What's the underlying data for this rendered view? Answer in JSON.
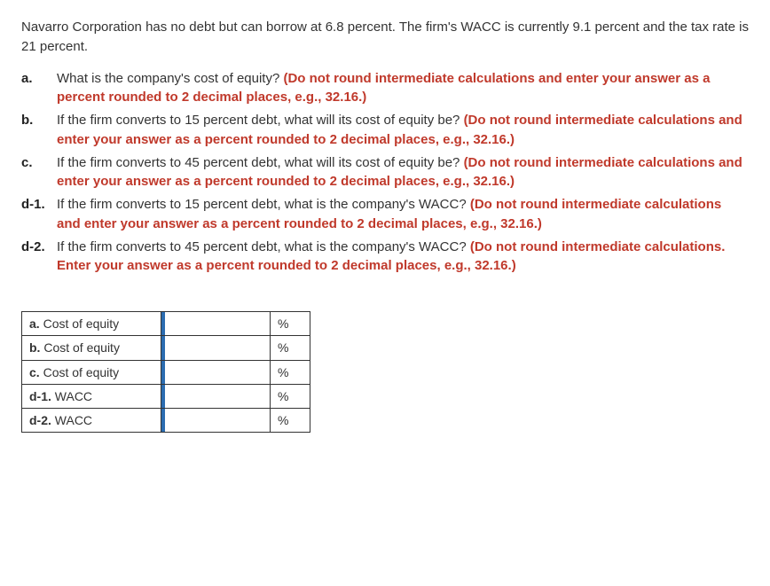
{
  "intro": "Navarro Corporation has no debt but can borrow at 6.8 percent. The firm's WACC is currently 9.1 percent and the tax rate is 21 percent.",
  "questions": [
    {
      "label": "a.",
      "text_plain": "What is the company's cost of equity? ",
      "text_red": "(Do not round intermediate calculations and enter your answer as a percent rounded to 2 decimal places, e.g., 32.16.)"
    },
    {
      "label": "b.",
      "text_plain": "If the firm converts to 15 percent debt, what will its cost of equity be? ",
      "text_red": "(Do not round intermediate calculations and enter your answer as a percent rounded to 2 decimal places, e.g., 32.16.)"
    },
    {
      "label": "c.",
      "text_plain": "If the firm converts to 45 percent debt, what will its cost of equity be? ",
      "text_red": "(Do not round intermediate calculations and enter your answer as a percent rounded to 2 decimal places, e.g., 32.16.)"
    },
    {
      "label": "d-1.",
      "text_plain": "If the firm converts to 15 percent debt, what is the company's WACC? ",
      "text_red": "(Do not round intermediate calculations and enter your answer as a percent rounded to 2 decimal places, e.g., 32.16.)"
    },
    {
      "label": "d-2.",
      "text_plain": "If the firm converts to 45 percent debt, what is the company's WACC? ",
      "text_red": "(Do not round intermediate calculations. Enter your answer as a percent rounded to 2 decimal places, e.g., 32.16.)"
    }
  ],
  "answers": [
    {
      "prefix": "a.",
      "label": "Cost of equity",
      "unit": "%"
    },
    {
      "prefix": "b.",
      "label": "Cost of equity",
      "unit": "%"
    },
    {
      "prefix": "c.",
      "label": "Cost of equity",
      "unit": "%"
    },
    {
      "prefix": "d-1.",
      "label": "WACC",
      "unit": "%"
    },
    {
      "prefix": "d-2.",
      "label": "WACC",
      "unit": "%"
    }
  ]
}
